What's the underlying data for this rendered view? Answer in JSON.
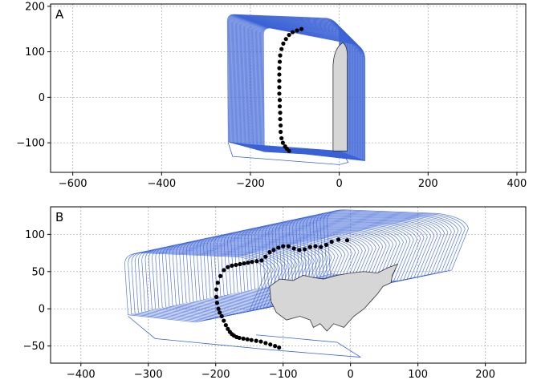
{
  "chart_data": [
    {
      "type": "scatter",
      "panel_label": "A",
      "xlim": [
        -650,
        420
      ],
      "ylim": [
        -165,
        205
      ],
      "xticks": [
        -600,
        -400,
        -200,
        0,
        200,
        400
      ],
      "yticks": [
        -100,
        0,
        100,
        200
      ],
      "grid": true,
      "line_color": "#3b63d6",
      "point_color": "#000000",
      "fill_color": "#d6d6d6",
      "points": {
        "x": [
          -85,
          -95,
          -105,
          -113,
          -120,
          -126,
          -130,
          -133,
          -134,
          -135,
          -135,
          -135,
          -135,
          -135,
          -134,
          -134,
          -133,
          -133,
          -132,
          -132,
          -130,
          -127,
          -122,
          -118,
          -113
        ],
        "y": [
          150,
          147,
          143,
          137,
          128,
          118,
          106,
          92,
          78,
          64,
          50,
          36,
          22,
          8,
          -6,
          -20,
          -34,
          -48,
          -62,
          -76,
          -90,
          -100,
          -108,
          -113,
          -118
        ]
      }
    },
    {
      "type": "scatter",
      "panel_label": "B",
      "xlim": [
        -445,
        260
      ],
      "ylim": [
        -73,
        137
      ],
      "xticks": [
        -400,
        -300,
        -200,
        -100,
        0,
        100,
        200
      ],
      "yticks": [
        -50,
        0,
        50,
        100
      ],
      "grid": true,
      "line_color": "#3b63d6",
      "point_color": "#000000",
      "fill_color": "#d6d6d6",
      "points": {
        "x": [
          -5,
          -18,
          -28,
          -36,
          -44,
          -52,
          -60,
          -68,
          -76,
          -84,
          -92,
          -100,
          -107,
          -114,
          -120,
          -126,
          -132,
          -139,
          -146,
          -152,
          -158,
          -164,
          -170,
          -176,
          -182,
          -188,
          -193,
          -197,
          -199,
          -199,
          -198,
          -196,
          -194,
          -191,
          -188,
          -185,
          -182,
          -179,
          -176,
          -173,
          -169,
          -165,
          -159,
          -153,
          -147,
          -140,
          -133,
          -126,
          -119,
          -112,
          -106
        ],
        "y": [
          92,
          93,
          90,
          86,
          83,
          84,
          83,
          80,
          79,
          81,
          84,
          84,
          82,
          79,
          76,
          70,
          65,
          64,
          63,
          62,
          61,
          60,
          59,
          58,
          56,
          52,
          44,
          35,
          26,
          16,
          8,
          0,
          -5,
          -10,
          -16,
          -22,
          -27,
          -31,
          -34,
          -36,
          -38,
          -39,
          -40,
          -41,
          -42,
          -43,
          -44,
          -46,
          -48,
          -50,
          -52
        ]
      }
    }
  ]
}
